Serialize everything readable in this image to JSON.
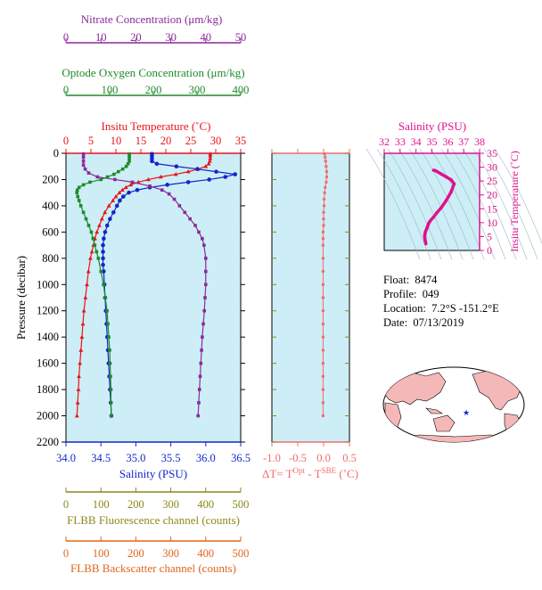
{
  "colors": {
    "nitrate": "#8b2a9a",
    "oxygen": "#1f8a2a",
    "temperature": "#e8141b",
    "salinity": "#1326c8",
    "fluorescence": "#8a8a1a",
    "backscatter": "#e0661a",
    "delta_t": "#f26b6b",
    "ts_plot": "#e0128c",
    "panel_bg": "#cdeef6",
    "map_land": "#f4b8b8"
  },
  "float_info": {
    "float_label": "Float:",
    "float_value": "8474",
    "profile_label": "Profile:",
    "profile_value": "049",
    "location_label": "Location:",
    "location_value": "7.2°S -151.2°E",
    "date_label": "Date:",
    "date_value": "07/13/2019"
  },
  "map": {
    "marker_icon": "star-icon",
    "marker_color": "#1326c8"
  },
  "chart_data": [
    {
      "type": "line",
      "name": "main-profile",
      "ylabel": "Pressure (decibar)",
      "ylim": [
        2200,
        0
      ],
      "yticks": [
        0,
        200,
        400,
        600,
        800,
        1000,
        1200,
        1400,
        1600,
        1800,
        2000,
        2200
      ],
      "axes": {
        "nitrate": {
          "label": "Nitrate Concentration (μm/kg)",
          "range": [
            0,
            50
          ],
          "ticks": [
            0,
            10,
            20,
            30,
            40,
            50
          ]
        },
        "oxygen": {
          "label": "Optode Oxygen Concentration (μm/kg)",
          "range": [
            0,
            400
          ],
          "ticks": [
            0,
            100,
            200,
            300,
            400
          ]
        },
        "temperature": {
          "label": "Insitu Temperature (˚C)",
          "range": [
            0,
            35
          ],
          "ticks": [
            0,
            5,
            10,
            15,
            20,
            25,
            30,
            35
          ]
        },
        "salinity": {
          "label": "Salinity (PSU)",
          "range": [
            34.0,
            36.5
          ],
          "ticks": [
            "34.0",
            "34.5",
            "35.0",
            "35.5",
            "36.0",
            "36.5"
          ]
        },
        "fluorescence": {
          "label": "FLBB Fluorescence channel (counts)",
          "range": [
            0,
            500
          ],
          "ticks": [
            0,
            100,
            200,
            300,
            400,
            500
          ]
        },
        "backscatter": {
          "label": "FLBB Backscatter channel (counts)",
          "range": [
            0,
            500
          ],
          "ticks": [
            0,
            100,
            200,
            300,
            400,
            500
          ]
        }
      },
      "series": [
        {
          "name": "temperature",
          "pressure": [
            5,
            20,
            40,
            60,
            80,
            100,
            120,
            140,
            160,
            180,
            200,
            220,
            240,
            260,
            280,
            300,
            330,
            360,
            400,
            450,
            500,
            550,
            600,
            650,
            700,
            750,
            800,
            900,
            1000,
            1100,
            1200,
            1300,
            1400,
            1500,
            1600,
            1700,
            1800,
            1900,
            2000
          ],
          "values": [
            28.9,
            28.9,
            28.9,
            28.8,
            28.6,
            28.0,
            26.5,
            24.5,
            22.0,
            19.0,
            16.5,
            14.5,
            13.0,
            12.0,
            11.3,
            10.7,
            10.0,
            9.4,
            8.6,
            7.8,
            7.2,
            6.7,
            6.2,
            5.8,
            5.5,
            5.2,
            4.9,
            4.5,
            4.2,
            3.9,
            3.6,
            3.4,
            3.2,
            3.0,
            2.8,
            2.6,
            2.5,
            2.35,
            2.2
          ]
        },
        {
          "name": "salinity",
          "pressure": [
            5,
            20,
            40,
            60,
            80,
            100,
            120,
            140,
            160,
            180,
            200,
            220,
            240,
            260,
            280,
            300,
            330,
            360,
            400,
            450,
            500,
            550,
            600,
            650,
            700,
            750,
            800,
            850,
            900,
            1000,
            1100,
            1200,
            1300,
            1400,
            1500,
            1600,
            1700,
            1800,
            1900,
            2000
          ],
          "values": [
            35.23,
            35.23,
            35.23,
            35.23,
            35.3,
            35.58,
            35.88,
            36.15,
            36.42,
            36.28,
            36.05,
            35.75,
            35.45,
            35.2,
            35.02,
            34.9,
            34.82,
            34.77,
            34.73,
            34.68,
            34.63,
            34.59,
            34.56,
            34.54,
            34.53,
            34.53,
            34.53,
            34.53,
            34.54,
            34.55,
            34.56,
            34.57,
            34.58,
            34.59,
            34.6,
            34.61,
            34.62,
            34.63,
            34.64,
            34.65
          ]
        },
        {
          "name": "nitrate",
          "pressure": [
            5,
            30,
            60,
            90,
            120,
            150,
            180,
            200,
            220,
            250,
            280,
            310,
            350,
            400,
            450,
            500,
            550,
            600,
            650,
            700,
            800,
            900,
            1000,
            1100,
            1200,
            1300,
            1400,
            1500,
            1600,
            1700,
            1800,
            1900,
            2000
          ],
          "values": [
            5.0,
            5.0,
            5.0,
            5.0,
            5.5,
            6.5,
            9.0,
            14.0,
            19.0,
            24.0,
            27.5,
            29.5,
            31.0,
            32.5,
            34.0,
            35.5,
            37.0,
            38.0,
            39.0,
            39.5,
            40.0,
            40.0,
            40.0,
            39.8,
            39.6,
            39.3,
            39.0,
            38.8,
            38.6,
            38.4,
            38.2,
            38.0,
            37.8
          ]
        },
        {
          "name": "oxygen",
          "pressure": [
            5,
            20,
            40,
            60,
            80,
            100,
            120,
            140,
            160,
            180,
            200,
            220,
            240,
            260,
            280,
            300,
            330,
            360,
            400,
            450,
            500,
            550,
            600,
            650,
            700,
            750,
            800,
            900,
            1000,
            1100,
            1200,
            1300,
            1400,
            1500,
            1600,
            1700,
            1800,
            1900,
            2000
          ],
          "values": [
            145,
            145,
            145,
            145,
            142,
            138,
            130,
            120,
            110,
            95,
            80,
            55,
            40,
            30,
            26,
            25,
            27,
            30,
            34,
            40,
            46,
            52,
            58,
            62,
            66,
            70,
            74,
            80,
            86,
            90,
            94,
            96,
            98,
            100,
            101,
            102,
            103,
            103,
            104
          ]
        }
      ]
    },
    {
      "type": "scatter",
      "name": "delta-t",
      "xlabel": "ΔT= T^Opt - T^SBE (˚C)",
      "xlim": [
        -1.0,
        0.5
      ],
      "xticks": [
        "-1.0",
        "-0.5",
        "0.0",
        "0.5"
      ],
      "ylim": [
        2200,
        0
      ],
      "pressure": [
        5,
        30,
        60,
        100,
        140,
        180,
        220,
        260,
        300,
        350,
        400,
        450,
        500,
        550,
        600,
        650,
        700,
        800,
        900,
        1000,
        1100,
        1200,
        1300,
        1400,
        1500,
        1600,
        1700,
        1800,
        1900,
        2000
      ],
      "values": [
        0.02,
        0.03,
        0.04,
        0.05,
        0.06,
        0.06,
        0.05,
        0.03,
        0.02,
        0.01,
        0.01,
        0.0,
        0.0,
        0.0,
        -0.01,
        -0.01,
        -0.01,
        -0.01,
        -0.01,
        -0.01,
        -0.01,
        -0.01,
        -0.01,
        -0.01,
        -0.01,
        -0.01,
        -0.01,
        -0.01,
        -0.01,
        -0.01
      ]
    },
    {
      "type": "line",
      "name": "ts-diagram",
      "xlabel": "Salinity (PSU)",
      "ylabel": "Insitu Temperature (˚C)",
      "xlim": [
        32,
        38
      ],
      "ylim": [
        0,
        35
      ],
      "xticks": [
        32,
        33,
        34,
        35,
        36,
        37,
        38
      ],
      "yticks": [
        0,
        5,
        10,
        15,
        20,
        25,
        30,
        35
      ],
      "x": [
        35.1,
        35.2,
        35.3,
        35.6,
        35.9,
        36.2,
        36.4,
        36.2,
        35.9,
        35.6,
        35.3,
        35.1,
        34.9,
        34.8,
        34.75,
        34.7,
        34.65,
        34.6,
        34.57,
        34.55,
        34.55,
        34.56,
        34.58,
        34.6,
        34.62
      ],
      "y": [
        28.9,
        28.8,
        28.5,
        27.5,
        26.5,
        25.5,
        24.0,
        21.0,
        18.0,
        15.5,
        13.5,
        12.0,
        10.7,
        9.8,
        9.0,
        8.2,
        7.5,
        6.8,
        6.2,
        5.5,
        5.0,
        4.3,
        3.6,
        3.0,
        2.4
      ]
    }
  ]
}
